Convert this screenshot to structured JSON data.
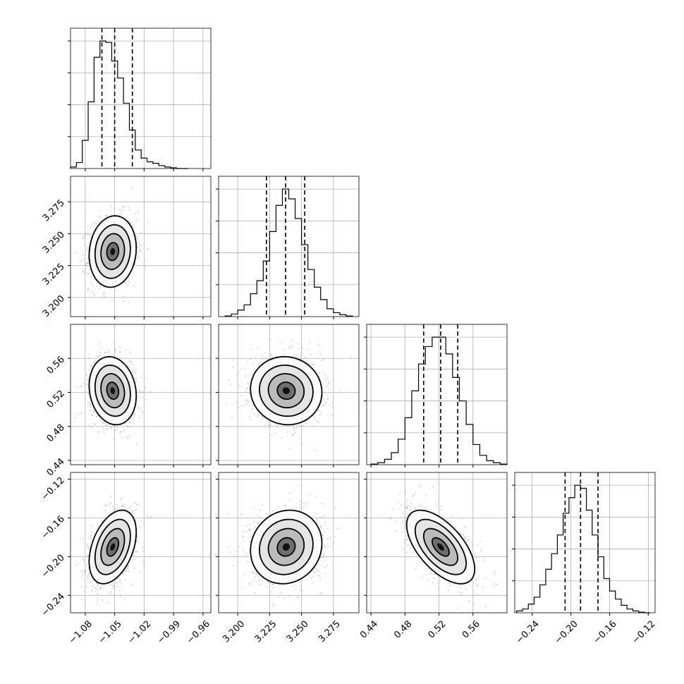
{
  "chart_data": {
    "type": "corner",
    "title": "",
    "parameters": [
      {
        "name": "",
        "lim": [
          -1.095,
          -0.952
        ],
        "ticks": [
          -1.08,
          -1.05,
          -1.02,
          -0.99,
          -0.96
        ],
        "tick_labels": [
          "−1.08",
          "−1.05",
          "−1.02",
          "−0.99",
          "−0.96"
        ]
      },
      {
        "name": "",
        "lim": [
          3.185,
          3.295
        ],
        "ticks": [
          3.2,
          3.225,
          3.25,
          3.275
        ],
        "tick_labels": [
          "3.200",
          "3.225",
          "3.250",
          "3.275"
        ]
      },
      {
        "name": "",
        "lim": [
          0.435,
          0.6
        ],
        "ticks": [
          0.44,
          0.48,
          0.52,
          0.56
        ],
        "tick_labels": [
          "0.44",
          "0.48",
          "0.52",
          "0.56"
        ]
      },
      {
        "name": "",
        "lim": [
          -0.258,
          -0.113
        ],
        "ticks": [
          -0.24,
          -0.2,
          -0.16,
          -0.12
        ],
        "tick_labels": [
          "−0.24",
          "−0.20",
          "−0.16",
          "−0.12"
        ]
      }
    ],
    "marginals": [
      {
        "param": 0,
        "quantiles": [
          -1.063,
          -1.05,
          -1.032
        ],
        "bin_edges": [
          -1.095,
          -1.089,
          -1.083,
          -1.077,
          -1.071,
          -1.065,
          -1.059,
          -1.053,
          -1.047,
          -1.041,
          -1.035,
          -1.029,
          -1.023,
          -1.017,
          -1.011,
          -1.005,
          -0.999,
          -0.993,
          -0.987,
          -0.981,
          -0.975
        ],
        "counts": [
          2,
          8,
          38,
          90,
          150,
          172,
          170,
          145,
          122,
          88,
          52,
          25,
          14,
          9,
          7,
          4,
          2,
          1,
          0,
          0
        ]
      },
      {
        "param": 1,
        "quantiles": [
          3.2225,
          3.2375,
          3.2525
        ],
        "bin_edges": [
          3.19,
          3.195,
          3.2,
          3.205,
          3.21,
          3.215,
          3.22,
          3.225,
          3.23,
          3.235,
          3.24,
          3.245,
          3.25,
          3.255,
          3.26,
          3.265,
          3.27,
          3.275,
          3.28,
          3.285,
          3.29
        ],
        "counts": [
          1,
          4,
          10,
          18,
          35,
          55,
          85,
          130,
          170,
          195,
          180,
          150,
          110,
          72,
          45,
          26,
          12,
          6,
          3,
          1
        ]
      },
      {
        "param": 2,
        "quantiles": [
          0.502,
          0.522,
          0.542
        ],
        "bin_edges": [
          0.44,
          0.448,
          0.456,
          0.464,
          0.472,
          0.48,
          0.488,
          0.496,
          0.504,
          0.512,
          0.52,
          0.528,
          0.536,
          0.544,
          0.552,
          0.56,
          0.568,
          0.576,
          0.584,
          0.592,
          0.6
        ],
        "counts": [
          1,
          3,
          8,
          18,
          38,
          70,
          110,
          150,
          176,
          190,
          190,
          165,
          130,
          95,
          60,
          30,
          14,
          6,
          3,
          1
        ]
      },
      {
        "param": 3,
        "quantiles": [
          -0.206,
          -0.19,
          -0.172
        ],
        "bin_edges": [
          -0.256,
          -0.25,
          -0.244,
          -0.238,
          -0.232,
          -0.226,
          -0.22,
          -0.214,
          -0.208,
          -0.202,
          -0.196,
          -0.19,
          -0.184,
          -0.178,
          -0.172,
          -0.166,
          -0.16,
          -0.154,
          -0.148,
          -0.142,
          -0.136,
          -0.13,
          -0.124,
          -0.118
        ],
        "counts": [
          3,
          6,
          14,
          25,
          45,
          70,
          95,
          125,
          160,
          185,
          205,
          200,
          165,
          125,
          90,
          55,
          35,
          22,
          12,
          6,
          3,
          1,
          0
        ]
      }
    ],
    "joints": [
      {
        "x": 0,
        "y": 1,
        "center": [
          -1.052,
          3.236
        ],
        "sigma": [
          0.012,
          0.014
        ],
        "rho": 0.1
      },
      {
        "x": 0,
        "y": 2,
        "center": [
          -1.052,
          0.522
        ],
        "sigma": [
          0.012,
          0.02
        ],
        "rho": -0.15
      },
      {
        "x": 1,
        "y": 2,
        "center": [
          3.238,
          0.522
        ],
        "sigma": [
          0.014,
          0.02
        ],
        "rho": -0.05
      },
      {
        "x": 0,
        "y": 3,
        "center": [
          -1.052,
          -0.19
        ],
        "sigma": [
          0.012,
          0.019
        ],
        "rho": 0.4
      },
      {
        "x": 1,
        "y": 3,
        "center": [
          3.238,
          -0.19
        ],
        "sigma": [
          0.014,
          0.019
        ],
        "rho": 0.1
      },
      {
        "x": 2,
        "y": 3,
        "center": [
          0.522,
          -0.19
        ],
        "sigma": [
          0.02,
          0.019
        ],
        "rho": -0.6
      }
    ],
    "contour_sigmas": [
      0.5,
      1.0,
      1.5,
      2.0
    ],
    "grid": true
  }
}
